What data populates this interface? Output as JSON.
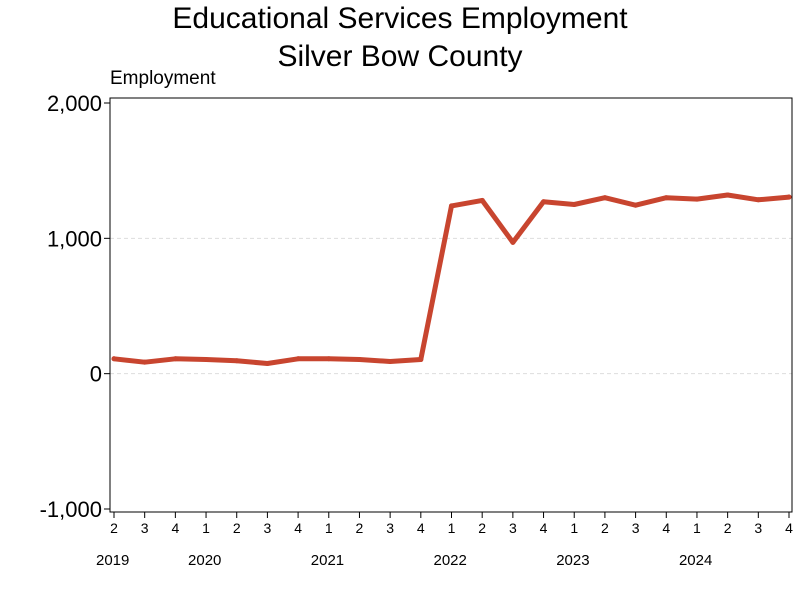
{
  "chart_data": {
    "type": "line",
    "title": "Educational Services Employment",
    "subtitle": "Silver Bow County",
    "ylabel": "Employment",
    "xlabel": "",
    "ylim": [
      -1000,
      2000
    ],
    "yticks": [
      {
        "value": -1000,
        "label": "-1,000"
      },
      {
        "value": 0,
        "label": "0"
      },
      {
        "value": 1000,
        "label": "1,000"
      },
      {
        "value": 2000,
        "label": "2,000"
      }
    ],
    "grid": true,
    "line_color": "#c8452f",
    "x": [
      "2019 Q2",
      "2019 Q3",
      "2019 Q4",
      "2020 Q1",
      "2020 Q2",
      "2020 Q3",
      "2020 Q4",
      "2021 Q1",
      "2021 Q2",
      "2021 Q3",
      "2021 Q4",
      "2022 Q1",
      "2022 Q2",
      "2022 Q3",
      "2022 Q4",
      "2023 Q1",
      "2023 Q2",
      "2023 Q3",
      "2023 Q4",
      "2024 Q1",
      "2024 Q2",
      "2024 Q3",
      "2024 Q4"
    ],
    "quarter_labels": [
      "2",
      "3",
      "4",
      "1",
      "2",
      "3",
      "4",
      "1",
      "2",
      "3",
      "4",
      "1",
      "2",
      "3",
      "4",
      "1",
      "2",
      "3",
      "4",
      "1",
      "2",
      "3",
      "4"
    ],
    "year_labels": [
      {
        "label": "2019",
        "start": 0
      },
      {
        "label": "2020",
        "start": 3
      },
      {
        "label": "2021",
        "start": 7
      },
      {
        "label": "2022",
        "start": 11
      },
      {
        "label": "2023",
        "start": 15
      },
      {
        "label": "2024",
        "start": 19
      }
    ],
    "series": [
      {
        "values": [
          110,
          85,
          110,
          105,
          95,
          75,
          110,
          110,
          105,
          90,
          105,
          1240,
          1280,
          970,
          1270,
          1250,
          1300,
          1245,
          1300,
          1290,
          1320,
          1285,
          1305
        ]
      }
    ]
  }
}
